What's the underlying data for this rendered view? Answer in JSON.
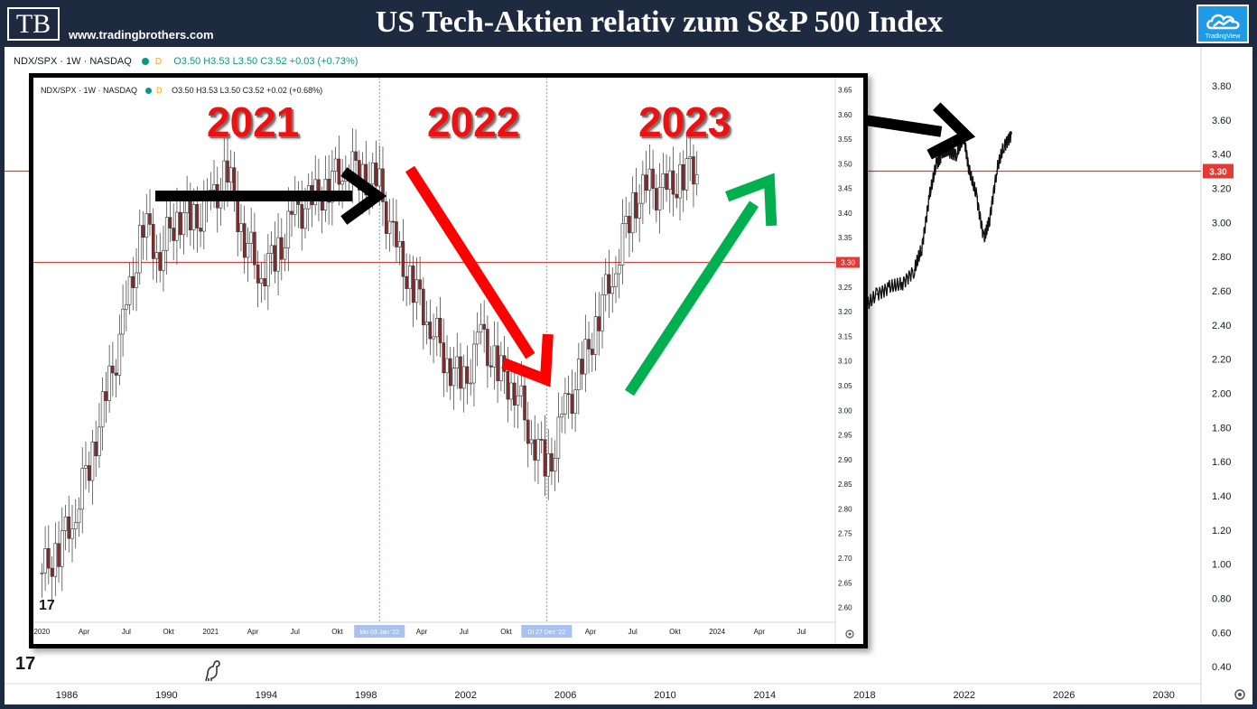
{
  "header": {
    "logo": "TB",
    "site": "www.tradingbrothers.com",
    "title": "US Tech-Aktien relativ zum S&P 500 Index",
    "badge": "TradingView"
  },
  "main_chart": {
    "symbol": "NDX/SPX · 1W · NASDAQ",
    "badge": "D",
    "ohlc": "O3.50 H3.53 L3.50 C3.52 +0.03 (+0.73%)",
    "price_label": "3.30",
    "tv_logo": "17"
  },
  "inset_chart": {
    "symbol": "NDX/SPX · 1W · NASDAQ",
    "badge": "D",
    "ohlc": "O3.50 H3.53 L3.50 C3.52 +0.02 (+0.68%)",
    "price_label": "3.30",
    "cursor_date_1": "Mo 03 Jan '22",
    "cursor_date_2": "Di 27 Dez '22",
    "tv_logo": "17"
  },
  "annotations": {
    "year_labels": [
      "2021",
      "2022",
      "2023"
    ],
    "arrow_colors": {
      "flat": "#000000",
      "down": "#ff0000",
      "up": "#00b050",
      "main": "#000000"
    }
  },
  "chart_data": [
    {
      "type": "line",
      "title": "",
      "x_ticks": [
        "1986",
        "1990",
        "1994",
        "1998",
        "2002",
        "2006",
        "2010",
        "2014",
        "2018",
        "2022",
        "2026",
        "2030"
      ],
      "y_ticks": [
        "0.40",
        "0.60",
        "0.80",
        "1.00",
        "1.20",
        "1.40",
        "1.60",
        "1.80",
        "2.00",
        "2.20",
        "2.40",
        "2.60",
        "2.80",
        "3.00",
        "3.20",
        "3.40",
        "3.60",
        "3.80"
      ],
      "xlim": [
        1983.5,
        2031.5
      ],
      "ylim": [
        0.3,
        3.9
      ],
      "horizontal_line": 3.3,
      "series": [
        {
          "x": [
            2015.0,
            2015.5,
            2016.0,
            2016.5,
            2017.0,
            2017.5,
            2018.0,
            2018.5,
            2019.0,
            2019.5,
            2020.0,
            2020.3,
            2020.6,
            2020.9,
            2021.1,
            2021.4,
            2021.7,
            2022.0,
            2022.2,
            2022.5,
            2022.8,
            2023.0,
            2023.3,
            2023.6,
            2023.9
          ],
          "y": [
            2.08,
            2.14,
            2.12,
            2.22,
            2.35,
            2.42,
            2.5,
            2.58,
            2.62,
            2.64,
            2.72,
            2.85,
            3.15,
            3.35,
            3.4,
            3.42,
            3.4,
            3.5,
            3.3,
            3.15,
            2.9,
            3.0,
            3.3,
            3.45,
            3.52
          ]
        }
      ]
    },
    {
      "type": "candlestick",
      "title": "",
      "x_ticks": [
        "2020",
        "Apr",
        "Jul",
        "Okt",
        "2021",
        "Apr",
        "Jul",
        "Okt",
        "Apr",
        "Jul",
        "Okt",
        "Apr",
        "Jul",
        "Okt",
        "2024",
        "Apr",
        "Jul"
      ],
      "y_ticks": [
        "2.60",
        "2.65",
        "2.70",
        "2.75",
        "2.80",
        "2.85",
        "2.90",
        "2.95",
        "3.00",
        "3.05",
        "3.10",
        "3.15",
        "3.20",
        "3.25",
        "3.30",
        "3.35",
        "3.40",
        "3.45",
        "3.50",
        "3.55",
        "3.60",
        "3.65"
      ],
      "xlim": [
        2019.95,
        2024.7
      ],
      "ylim": [
        2.57,
        3.66
      ],
      "horizontal_line": 3.3,
      "series": [
        {
          "x": [
            2020.0,
            2020.1,
            2020.2,
            2020.3,
            2020.4,
            2020.5,
            2020.6,
            2020.7,
            2020.8,
            2020.9,
            2021.0,
            2021.1,
            2021.2,
            2021.3,
            2021.4,
            2021.5,
            2021.6,
            2021.7,
            2021.8,
            2021.9,
            2022.0,
            2022.1,
            2022.2,
            2022.3,
            2022.4,
            2022.5,
            2022.6,
            2022.7,
            2022.8,
            2022.9,
            2023.0,
            2023.1,
            2023.2,
            2023.3,
            2023.4,
            2023.5,
            2023.6,
            2023.7,
            2023.8,
            2023.9
          ],
          "y": [
            2.67,
            2.72,
            2.8,
            2.92,
            3.05,
            3.2,
            3.38,
            3.32,
            3.4,
            3.38,
            3.42,
            3.48,
            3.35,
            3.28,
            3.32,
            3.4,
            3.42,
            3.46,
            3.5,
            3.48,
            3.45,
            3.32,
            3.25,
            3.18,
            3.1,
            3.05,
            3.15,
            3.08,
            3.05,
            2.95,
            2.88,
            3.0,
            3.08,
            3.2,
            3.3,
            3.42,
            3.45,
            3.44,
            3.48,
            3.5
          ]
        }
      ]
    }
  ]
}
